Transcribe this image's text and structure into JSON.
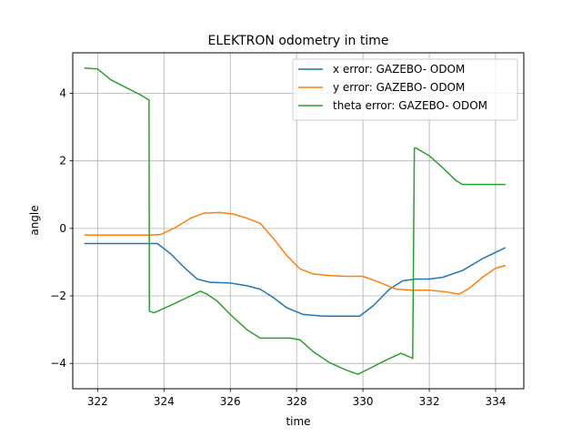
{
  "chart_data": {
    "type": "line",
    "title": "ELEKTRON odometry in time",
    "xlabel": "time",
    "ylabel": "angle",
    "xlim": [
      321.25,
      334.85
    ],
    "ylim": [
      -4.75,
      5.2
    ],
    "xticks": [
      322,
      324,
      326,
      328,
      330,
      332,
      334
    ],
    "yticks": [
      -4,
      -2,
      0,
      2,
      4
    ],
    "grid": true,
    "legend_position": "upper right",
    "series": [
      {
        "name": "x error: GAZEBO- ODOM",
        "color": "#1f77b4",
        "x": [
          321.6,
          322.5,
          323.3,
          323.8,
          324.2,
          324.6,
          325.0,
          325.4,
          326.0,
          326.5,
          326.9,
          327.3,
          327.7,
          328.2,
          328.8,
          329.4,
          329.9,
          330.3,
          330.8,
          331.2,
          331.6,
          332.0,
          332.4,
          333.0,
          333.6,
          334.3
        ],
        "y": [
          -0.45,
          -0.45,
          -0.45,
          -0.45,
          -0.75,
          -1.15,
          -1.5,
          -1.6,
          -1.62,
          -1.7,
          -1.8,
          -2.05,
          -2.35,
          -2.55,
          -2.6,
          -2.6,
          -2.6,
          -2.3,
          -1.8,
          -1.55,
          -1.5,
          -1.5,
          -1.45,
          -1.25,
          -0.9,
          -0.57
        ]
      },
      {
        "name": "y error: GAZEBO- ODOM",
        "color": "#ff7f0e",
        "x": [
          321.6,
          322.5,
          323.3,
          323.6,
          323.9,
          324.3,
          324.8,
          325.2,
          325.7,
          326.1,
          326.5,
          326.9,
          327.3,
          327.7,
          328.1,
          328.5,
          329.0,
          329.5,
          330.0,
          330.5,
          331.0,
          331.5,
          332.0,
          332.5,
          332.9,
          333.2,
          333.6,
          334.0,
          334.3
        ],
        "y": [
          -0.2,
          -0.2,
          -0.2,
          -0.2,
          -0.18,
          0.0,
          0.3,
          0.45,
          0.47,
          0.42,
          0.3,
          0.15,
          -0.3,
          -0.8,
          -1.2,
          -1.35,
          -1.4,
          -1.42,
          -1.42,
          -1.6,
          -1.8,
          -1.83,
          -1.83,
          -1.88,
          -1.95,
          -1.78,
          -1.45,
          -1.18,
          -1.1
        ]
      },
      {
        "name": "theta error: GAZEBO- ODOM",
        "color": "#2ca02c",
        "x": [
          321.6,
          322.0,
          322.4,
          322.9,
          323.3,
          323.55,
          323.56,
          323.7,
          324.2,
          324.7,
          325.1,
          325.3,
          325.6,
          326.0,
          326.5,
          326.9,
          327.3,
          327.8,
          328.1,
          328.5,
          329.0,
          329.5,
          329.85,
          330.2,
          330.7,
          331.15,
          331.5,
          331.55,
          331.6,
          332.0,
          332.4,
          332.8,
          333.0,
          333.5,
          334.0,
          334.3
        ],
        "y": [
          4.75,
          4.72,
          4.4,
          4.15,
          3.95,
          3.8,
          -2.45,
          -2.5,
          -2.28,
          -2.05,
          -1.86,
          -1.95,
          -2.15,
          -2.55,
          -3.0,
          -3.25,
          -3.25,
          -3.25,
          -3.3,
          -3.65,
          -3.98,
          -4.2,
          -4.32,
          -4.15,
          -3.9,
          -3.7,
          -3.85,
          2.38,
          2.38,
          2.15,
          1.8,
          1.42,
          1.3,
          1.3,
          1.3,
          1.3
        ]
      }
    ]
  }
}
